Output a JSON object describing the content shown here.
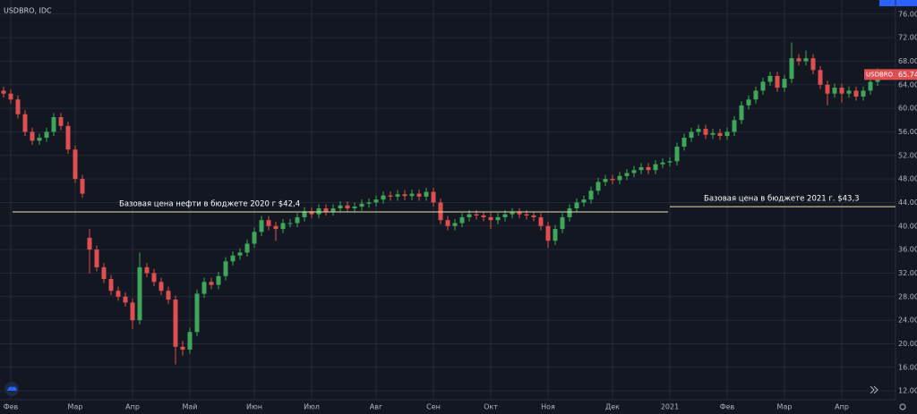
{
  "chart_data": {
    "type": "candlestick",
    "title": "USDBRO, IDC",
    "symbol": "USDBRO",
    "grid": true,
    "up_color": "#3fa75a",
    "down_color": "#e04f4f",
    "ylim": [
      10.5,
      78.4
    ],
    "yticks": [
      {
        "value": 12,
        "label": "12.00"
      },
      {
        "value": 16,
        "label": "16.00"
      },
      {
        "value": 20,
        "label": "20.00"
      },
      {
        "value": 24,
        "label": "24.00"
      },
      {
        "value": 28,
        "label": "28.00"
      },
      {
        "value": 32,
        "label": "32.00"
      },
      {
        "value": 36,
        "label": "36.00"
      },
      {
        "value": 40,
        "label": "40.00"
      },
      {
        "value": 44,
        "label": "44.00"
      },
      {
        "value": 48,
        "label": "48.00"
      },
      {
        "value": 52,
        "label": "52.00"
      },
      {
        "value": 56,
        "label": "56.00"
      },
      {
        "value": 60,
        "label": "60.00"
      },
      {
        "value": 64,
        "label": "64.00"
      },
      {
        "value": 68,
        "label": "68.00"
      },
      {
        "value": 72,
        "label": "72.00"
      },
      {
        "value": 76,
        "label": "76.00"
      }
    ],
    "categories": [
      null,
      "Фев",
      null,
      null,
      null,
      null,
      null,
      null,
      null,
      null,
      "Мар",
      null,
      null,
      null,
      null,
      null,
      null,
      null,
      "Апр",
      null,
      null,
      null,
      null,
      null,
      null,
      null,
      "Май",
      null,
      null,
      null,
      null,
      null,
      null,
      null,
      null,
      "Июн",
      null,
      null,
      null,
      null,
      null,
      null,
      null,
      "Июл",
      null,
      null,
      null,
      null,
      null,
      null,
      null,
      null,
      "Авг",
      null,
      null,
      null,
      null,
      null,
      null,
      null,
      "Сен",
      null,
      null,
      null,
      null,
      null,
      null,
      null,
      "Окт",
      null,
      null,
      null,
      null,
      null,
      null,
      null,
      "Ноя",
      null,
      null,
      null,
      null,
      null,
      null,
      null,
      null,
      "Дек",
      null,
      null,
      null,
      null,
      null,
      null,
      null,
      "2021",
      null,
      null,
      null,
      null,
      null,
      null,
      null,
      "Фев",
      null,
      null,
      null,
      null,
      null,
      null,
      null,
      "Мар",
      null,
      null,
      null,
      null,
      null,
      null,
      null,
      "Апр",
      null,
      null,
      null,
      null,
      null
    ],
    "open": [
      63,
      62.5,
      61.5,
      59,
      56,
      54.5,
      55,
      56,
      58.5,
      57,
      53,
      48,
      38,
      36,
      33,
      31,
      29,
      28,
      27,
      24,
      33,
      32,
      30.5,
      29,
      27.5,
      19.5,
      19,
      22,
      28.5,
      30.5,
      30,
      31.5,
      34,
      35,
      35.5,
      37,
      39,
      41,
      40,
      39.5,
      40.5,
      40.5,
      41.5,
      42.5,
      42,
      43,
      42.5,
      43,
      43.5,
      43,
      43.3,
      43.8,
      44,
      44.5,
      45.2,
      45,
      45.4,
      45.1,
      45.5,
      45,
      45.8,
      44,
      41,
      40,
      40.5,
      41.5,
      42,
      41.8,
      41.5,
      41,
      41.5,
      42,
      42.3,
      42,
      41.8,
      41.5,
      40,
      37.5,
      39.5,
      41.5,
      43,
      44,
      44.5,
      46,
      47.5,
      48,
      47.8,
      48.5,
      49,
      49.5,
      50,
      49.5,
      50.5,
      50.8,
      51,
      53.5,
      55,
      56,
      56.5,
      55.5,
      55.8,
      55.3,
      56,
      58,
      60.5,
      61.5,
      63,
      64.5,
      65.5,
      63.5,
      65,
      68.5,
      68,
      68.5,
      66.5,
      64,
      62.5,
      63.5,
      62.5,
      63,
      62,
      63,
      64.5
    ],
    "high": [
      63.7,
      63.2,
      62.2,
      59.7,
      56.7,
      55.7,
      56.7,
      59.2,
      59.2,
      57.7,
      53.7,
      48.7,
      39.5,
      36.7,
      33.7,
      31.7,
      29.7,
      28.7,
      27.7,
      35.5,
      33.7,
      32.7,
      31.2,
      29.7,
      28.2,
      20.5,
      22.7,
      29.2,
      31.2,
      31.2,
      32.2,
      34.7,
      35.7,
      36.2,
      37.7,
      39.7,
      41.7,
      41.7,
      40.7,
      41.2,
      41.2,
      42.2,
      43.2,
      43.2,
      43.7,
      43.7,
      43.7,
      44.2,
      44.2,
      44,
      44.5,
      44.7,
      45.2,
      45.9,
      45.9,
      46.1,
      46.1,
      46.2,
      46.2,
      46.5,
      46.5,
      44.7,
      41.7,
      41.2,
      42.2,
      42.7,
      42.7,
      42.5,
      42.2,
      42.2,
      42.7,
      43,
      43,
      42.7,
      42.5,
      42.2,
      40.7,
      40.2,
      42.2,
      43.7,
      44.7,
      45.2,
      46.7,
      48.2,
      48.7,
      48.7,
      49.2,
      49.7,
      50.2,
      50.7,
      50.7,
      51.2,
      51.5,
      51.7,
      54.2,
      55.7,
      56.7,
      57.2,
      57.2,
      56.5,
      56.5,
      56.7,
      58.7,
      61.2,
      62.2,
      63.7,
      65.2,
      66.2,
      66.2,
      65.7,
      71.2,
      69.2,
      69.8,
      69.2,
      67.2,
      64.7,
      64.2,
      64.2,
      63.7,
      63.7,
      63.7,
      65.2,
      66.8
    ],
    "low": [
      61.8,
      60.8,
      58.3,
      55.3,
      53.8,
      53.8,
      54.3,
      55.3,
      56.3,
      52.3,
      47.3,
      44.8,
      32,
      32.3,
      30.3,
      28.3,
      27.3,
      26.3,
      22.5,
      23.3,
      31.3,
      29.8,
      28.3,
      26.8,
      16.5,
      18,
      18.3,
      21.3,
      27.8,
      29.3,
      29.3,
      30.8,
      33.3,
      34.3,
      34.8,
      36.3,
      38.3,
      39.3,
      37.5,
      38.8,
      39.8,
      39.8,
      40.8,
      41.3,
      41.3,
      41.8,
      41.8,
      42.3,
      42.3,
      42.3,
      42.6,
      43.1,
      43.3,
      43.8,
      44.3,
      44.3,
      44.4,
      44.4,
      44.3,
      44.3,
      43.3,
      40.3,
      39.3,
      39.3,
      39.8,
      40.8,
      41.1,
      40.8,
      39.5,
      40.3,
      40.8,
      41.3,
      41.3,
      41.1,
      40.8,
      39.3,
      36.3,
      36.8,
      38.8,
      40.8,
      42.3,
      43.3,
      43.8,
      45.3,
      46.8,
      47.1,
      47.1,
      47.8,
      48.3,
      48.8,
      48.8,
      48.8,
      49.8,
      50.1,
      50.3,
      52.8,
      54.3,
      55.3,
      54.8,
      54.8,
      54.6,
      54.6,
      55.3,
      57.3,
      59.8,
      60.8,
      62.3,
      63.8,
      62.8,
      62.8,
      64.3,
      67.3,
      67.3,
      65.8,
      63.3,
      60.5,
      61.8,
      61,
      61.8,
      61.3,
      61.3,
      62.3,
      63.8
    ],
    "close": [
      62.5,
      61.5,
      59,
      56,
      54.5,
      55,
      56,
      58.5,
      57,
      53,
      48,
      45.5,
      36,
      33,
      31,
      29,
      28,
      27,
      24,
      33,
      32,
      30.5,
      29,
      27.5,
      19.5,
      19,
      22,
      28.5,
      30.5,
      30,
      31.5,
      34,
      35,
      35.5,
      37,
      39,
      41,
      40,
      39.5,
      40.5,
      40.5,
      41.5,
      42.5,
      42,
      43,
      42.5,
      43,
      43.5,
      43,
      43.3,
      43.8,
      44,
      44.5,
      45.2,
      45,
      45.4,
      45.1,
      45.5,
      45,
      45.8,
      44,
      41,
      40,
      40.5,
      41.5,
      42,
      41.8,
      41.5,
      41,
      41.5,
      42,
      42.3,
      42,
      41.8,
      41.5,
      40,
      37.5,
      39.5,
      41.5,
      43,
      44,
      44.5,
      46,
      47.5,
      48,
      47.8,
      48.5,
      49,
      49.5,
      50,
      49.5,
      50.5,
      50.8,
      51,
      53.5,
      55,
      56,
      56.5,
      55.5,
      55.8,
      55.3,
      56,
      58,
      60.5,
      61.5,
      63,
      64.5,
      65.5,
      63.5,
      65,
      68.5,
      68,
      68.5,
      66.5,
      64,
      62.5,
      63.5,
      62.5,
      63,
      62,
      63,
      64.5,
      65.74
    ],
    "annotations": [
      {
        "text": "Базовая цена нефти в бюджете 2020 г $42,4",
        "value": 42.4
      },
      {
        "text": "Базовая цена в бюджете 2021 г. $43,3",
        "value": 43.3
      }
    ]
  }
}
